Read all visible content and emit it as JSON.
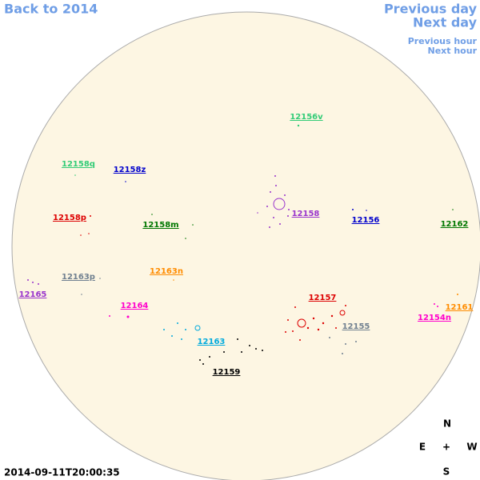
{
  "nav": {
    "back": "Back to 2014",
    "previous_day": "Previous day",
    "next_day": "Next day",
    "previous_hour": "Previous hour",
    "next_hour": "Next hour"
  },
  "regions": [
    "12156v",
    "12158q",
    "12158z",
    "12158p",
    "12158m",
    "12158",
    "12156",
    "12162",
    "12163p",
    "12163n",
    "12165",
    "12164",
    "12157",
    "12161",
    "12154n",
    "12155",
    "12163",
    "12159"
  ],
  "compass": {
    "north": "N",
    "east": "E",
    "center": "+",
    "west": "W",
    "south": "S"
  },
  "timestamp": "2014-09-11T20:00:35"
}
